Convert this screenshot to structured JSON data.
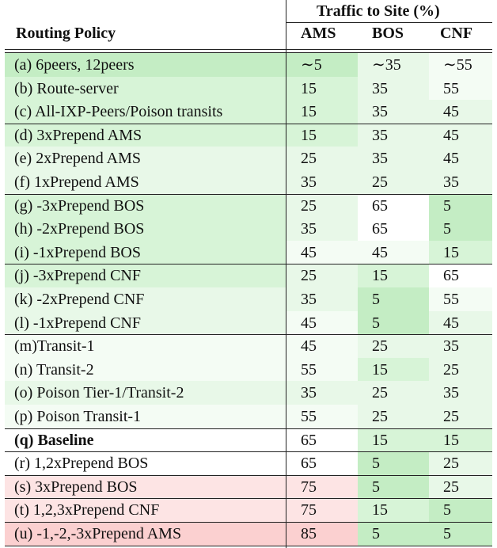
{
  "header": {
    "group_title": "Traffic to Site (%)",
    "policy_col": "Routing Policy",
    "sites": [
      "AMS",
      "BOS",
      "CNF"
    ]
  },
  "colors": {
    "green_strong": "#c4edc4",
    "green_medium": "#d7f4d7",
    "green_light": "#e8f8e8",
    "green_faint": "#f4fcf4",
    "white": "#ffffff",
    "red_light": "#fde4e4",
    "red_medium": "#fbd0d0"
  },
  "rows": [
    {
      "policy": "(a) 6peers, 12peers",
      "ams": "∼5",
      "bos": "∼35",
      "cnf": "∼55",
      "bold": false,
      "shade": [
        "green_strong",
        "green_strong",
        "green_light",
        "green_faint"
      ]
    },
    {
      "policy": "(b) Route-server",
      "ams": "15",
      "bos": "35",
      "cnf": "55",
      "bold": false,
      "shade": [
        "green_medium",
        "green_medium",
        "green_light",
        "green_faint"
      ]
    },
    {
      "policy": "(c) All-IXP-Peers/Poison transits",
      "ams": "15",
      "bos": "35",
      "cnf": "45",
      "bold": false,
      "shade": [
        "green_medium",
        "green_medium",
        "green_light",
        "green_light"
      ]
    },
    {
      "policy": "(d) 3xPrepend AMS",
      "ams": "15",
      "bos": "35",
      "cnf": "45",
      "bold": false,
      "shade": [
        "green_medium",
        "green_medium",
        "green_light",
        "green_light"
      ]
    },
    {
      "policy": "(e) 2xPrepend AMS",
      "ams": "25",
      "bos": "35",
      "cnf": "45",
      "bold": false,
      "shade": [
        "green_light",
        "green_light",
        "green_light",
        "green_light"
      ]
    },
    {
      "policy": "(f) 1xPrepend AMS",
      "ams": "35",
      "bos": "25",
      "cnf": "35",
      "bold": false,
      "shade": [
        "green_light",
        "green_light",
        "green_light",
        "green_light"
      ]
    },
    {
      "policy": "(g) -3xPrepend BOS",
      "ams": "25",
      "bos": "65",
      "cnf": "5",
      "bold": false,
      "shade": [
        "green_medium",
        "green_light",
        "white",
        "green_strong"
      ]
    },
    {
      "policy": "(h) -2xPrepend BOS",
      "ams": "35",
      "bos": "65",
      "cnf": "5",
      "bold": false,
      "shade": [
        "green_medium",
        "green_light",
        "white",
        "green_strong"
      ]
    },
    {
      "policy": "(i) -1xPrepend BOS",
      "ams": "45",
      "bos": "45",
      "cnf": "15",
      "bold": false,
      "shade": [
        "green_medium",
        "green_faint",
        "green_faint",
        "green_medium"
      ]
    },
    {
      "policy": "(j) -3xPrepend CNF",
      "ams": "25",
      "bos": "15",
      "cnf": "65",
      "bold": false,
      "shade": [
        "green_medium",
        "green_light",
        "green_medium",
        "white"
      ]
    },
    {
      "policy": "(k) -2xPrepend CNF",
      "ams": "35",
      "bos": "5",
      "cnf": "55",
      "bold": false,
      "shade": [
        "green_light",
        "green_light",
        "green_strong",
        "green_faint"
      ]
    },
    {
      "policy": "(l) -1xPrepend CNF",
      "ams": "45",
      "bos": "5",
      "cnf": "45",
      "bold": false,
      "shade": [
        "green_light",
        "green_faint",
        "green_strong",
        "green_light"
      ]
    },
    {
      "policy": "(m)Transit-1",
      "ams": "45",
      "bos": "25",
      "cnf": "35",
      "bold": false,
      "shade": [
        "green_faint",
        "green_faint",
        "green_light",
        "green_light"
      ]
    },
    {
      "policy": "(n) Transit-2",
      "ams": "55",
      "bos": "15",
      "cnf": "25",
      "bold": false,
      "shade": [
        "green_faint",
        "green_faint",
        "green_medium",
        "green_light"
      ]
    },
    {
      "policy": "(o) Poison Tier-1/Transit-2",
      "ams": "35",
      "bos": "25",
      "cnf": "35",
      "bold": false,
      "shade": [
        "green_light",
        "green_light",
        "green_light",
        "green_light"
      ]
    },
    {
      "policy": "(p) Poison Transit-1",
      "ams": "55",
      "bos": "25",
      "cnf": "25",
      "bold": false,
      "shade": [
        "green_faint",
        "green_faint",
        "green_light",
        "green_light"
      ]
    },
    {
      "policy": "(q) Baseline",
      "ams": "65",
      "bos": "15",
      "cnf": "15",
      "bold": true,
      "shade": [
        "white",
        "white",
        "green_medium",
        "green_medium"
      ]
    },
    {
      "policy": "(r) 1,2xPrepend BOS",
      "ams": "65",
      "bos": "5",
      "cnf": "25",
      "bold": false,
      "shade": [
        "white",
        "white",
        "green_strong",
        "green_light"
      ]
    },
    {
      "policy": "(s) 3xPrepend BOS",
      "ams": "75",
      "bos": "5",
      "cnf": "25",
      "bold": false,
      "shade": [
        "red_light",
        "red_light",
        "green_strong",
        "green_light"
      ]
    },
    {
      "policy": "(t) 1,2,3xPrepend CNF",
      "ams": "75",
      "bos": "15",
      "cnf": "5",
      "bold": false,
      "shade": [
        "red_light",
        "red_light",
        "green_medium",
        "green_strong"
      ]
    },
    {
      "policy": "(u) -1,-2,-3xPrepend AMS",
      "ams": "85",
      "bos": "5",
      "cnf": "5",
      "bold": false,
      "shade": [
        "red_medium",
        "red_medium",
        "green_strong",
        "green_strong"
      ]
    }
  ]
}
